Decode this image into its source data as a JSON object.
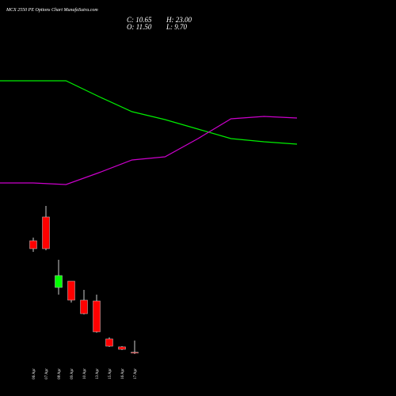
{
  "header": {
    "title": "MCX 2550 PE Options Chart MunafaSutra.com",
    "close": "C: 10.65",
    "high": "H: 23.00",
    "open": "O: 11.50",
    "low": "L: 9.70"
  },
  "chart_data": [
    {
      "type": "candlestick",
      "categories": [
        "06 Apr",
        "07 Apr",
        "08 Apr",
        "09 Apr",
        "10 Apr",
        "13 Apr",
        "15 Apr",
        "16 Apr",
        "17 Apr"
      ],
      "open": [
        121.3,
        144.7,
        75.3,
        81.5,
        62.8,
        62.0,
        24.6,
        16.8,
        11.5
      ],
      "high": [
        124.4,
        155.6,
        102.6,
        81.5,
        72.9,
        68.2,
        26.1,
        17.5,
        23.0
      ],
      "low": [
        110.4,
        111.9,
        68.2,
        60.4,
        48.7,
        30.8,
        16.8,
        13.6,
        9.7
      ],
      "close": [
        113.5,
        113.5,
        87.0,
        62.8,
        49.5,
        31.6,
        17.5,
        14.4,
        10.65
      ],
      "ylim": [
        7.4,
        163.4
      ],
      "up_color": "#00ff00",
      "down_color": "#ff0000"
    },
    {
      "type": "line",
      "x": [
        0,
        1,
        2,
        3,
        4,
        5,
        6,
        7,
        8,
        9
      ],
      "xlim": [
        0,
        9
      ],
      "ylim": [
        0,
        250
      ],
      "series": [
        {
          "color": "#00ee00",
          "values": [
            148,
            148,
            148,
            128,
            109,
            99,
            87,
            75,
            71,
            68
          ]
        },
        {
          "color": "#cc00cc",
          "values": [
            19,
            19,
            17,
            32,
            48,
            52,
            75,
            100,
            103,
            101
          ]
        }
      ]
    }
  ]
}
